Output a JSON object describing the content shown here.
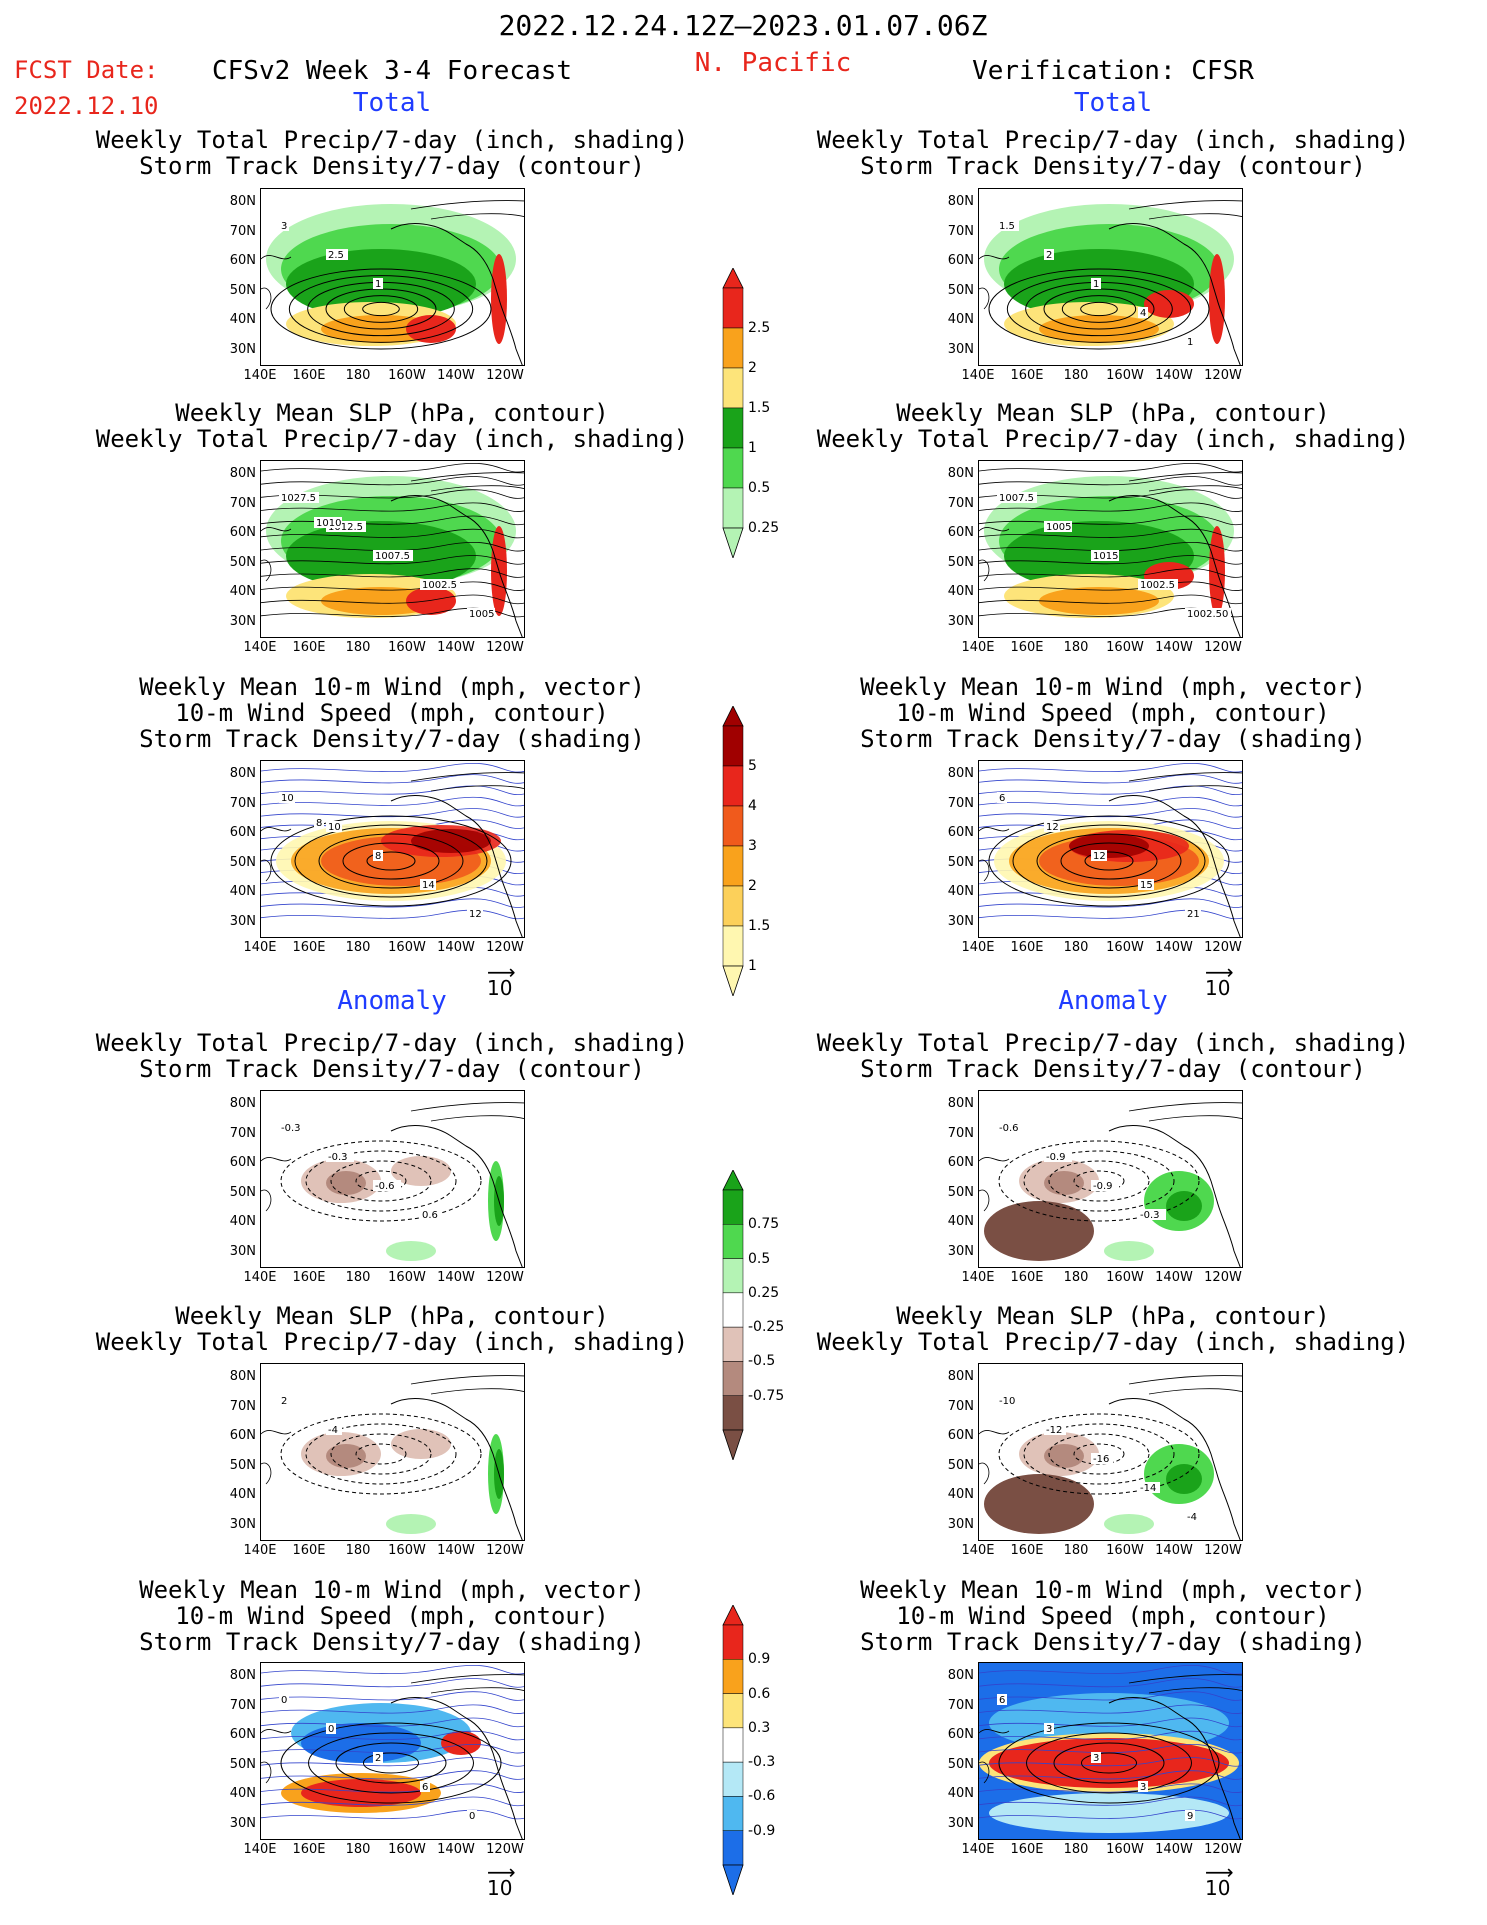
{
  "header": {
    "period": "2022.12.24.12Z–2023.01.07.06Z",
    "fcst_label": "FCST Date:",
    "fcst_date": "2022.12.10",
    "model": "CFSv2 Week 3-4 Forecast",
    "region": "N. Pacific",
    "verification": "Verification: CFSR"
  },
  "sections": {
    "total": "Total",
    "anomaly": "Anomaly"
  },
  "titles": {
    "precip_storm_1": "Weekly Total Precip/7-day (inch, shading)",
    "precip_storm_2": "Storm Track Density/7-day (contour)",
    "slp_1": "Weekly Mean SLP (hPa, contour)",
    "slp_2": "Weekly Total Precip/7-day (inch, shading)",
    "wind_1": "Weekly Mean 10-m Wind (mph, vector)",
    "wind_2": "10-m Wind Speed (mph, contour)",
    "wind_3": "Storm Track Density/7-day (shading)"
  },
  "axes": {
    "lat_labels": [
      "80N",
      "70N",
      "60N",
      "50N",
      "40N",
      "30N"
    ],
    "lon_labels": [
      "140E",
      "160E",
      "180",
      "160W",
      "140W",
      "120W"
    ]
  },
  "vector_ref": "10",
  "colorbars": {
    "precip_total": {
      "labels": [
        "2.5",
        "2",
        "1.5",
        "1",
        "0.5",
        "0.25"
      ],
      "colors": [
        "#e8261c",
        "#f9a21c",
        "#fde47a",
        "#1aa31a",
        "#4fd84f",
        "#b4f3b4"
      ]
    },
    "storm_total": {
      "labels": [
        "5",
        "4",
        "3",
        "2",
        "1.5",
        "1"
      ],
      "colors": [
        "#a00000",
        "#e8261c",
        "#f05a1c",
        "#f9a21c",
        "#fcd05a",
        "#fff7b0"
      ]
    },
    "precip_anom": {
      "labels": [
        "0.75",
        "0.5",
        "0.25",
        "-0.25",
        "-0.5",
        "-0.75"
      ],
      "colors": [
        "#1aa31a",
        "#4fd84f",
        "#b4f3b4",
        "#ffffff",
        "#e0c2b8",
        "#b48a7e",
        "#7a4f44"
      ]
    },
    "storm_anom": {
      "labels": [
        "0.9",
        "0.6",
        "0.3",
        "-0.3",
        "-0.6",
        "-0.9"
      ],
      "colors": [
        "#e8261c",
        "#f9a21c",
        "#fde47a",
        "#ffffff",
        "#b4e8f6",
        "#4fb8f0",
        "#1c6ee8"
      ]
    }
  },
  "chart_data": [
    {
      "panel": "total-precip-storm-forecast",
      "type": "heatmap",
      "contour_labels": [
        "3",
        "2.5",
        "1"
      ],
      "colors": [
        "#1aa31a",
        "#fde47a",
        "#e8261c"
      ]
    },
    {
      "panel": "total-precip-storm-verification",
      "type": "heatmap",
      "contour_labels": [
        "1.5",
        "2",
        "1",
        "4",
        "1"
      ],
      "colors": [
        "#1aa31a",
        "#f9a21c",
        "#e8261c"
      ]
    },
    {
      "panel": "total-slp-forecast",
      "type": "heatmap",
      "contour_labels": [
        "1027.5",
        "1012.5",
        "1007.5",
        "1002.5",
        "1005",
        "1010"
      ]
    },
    {
      "panel": "total-slp-verification",
      "type": "heatmap",
      "contour_labels": [
        "1007.5",
        "1005",
        "1015",
        "1002.5",
        "1002.50"
      ]
    },
    {
      "panel": "total-wind-forecast",
      "type": "heatmap",
      "contour_labels": [
        "10",
        "10",
        "8",
        "14",
        "12",
        "8"
      ]
    },
    {
      "panel": "total-wind-verification",
      "type": "heatmap",
      "contour_labels": [
        "6",
        "12",
        "12",
        "15",
        "21"
      ]
    },
    {
      "panel": "anom-precip-storm-forecast",
      "type": "heatmap",
      "contour_labels": [
        "-0.3",
        "-0.3",
        "-0.6",
        "0.6"
      ]
    },
    {
      "panel": "anom-precip-storm-verification",
      "type": "heatmap",
      "contour_labels": [
        "-0.6",
        "-0.9",
        "-0.9",
        "-0.3"
      ]
    },
    {
      "panel": "anom-slp-forecast",
      "type": "heatmap",
      "contour_labels": [
        "2",
        "-4"
      ]
    },
    {
      "panel": "anom-slp-verification",
      "type": "heatmap",
      "contour_labels": [
        "-10",
        "-12",
        "-16",
        "-14",
        "-4"
      ]
    },
    {
      "panel": "anom-wind-forecast",
      "type": "heatmap",
      "contour_labels": [
        "0",
        "0",
        "2",
        "6",
        "0"
      ]
    },
    {
      "panel": "anom-wind-verification",
      "type": "heatmap",
      "contour_labels": [
        "6",
        "3",
        "3",
        "3",
        "9"
      ]
    }
  ]
}
